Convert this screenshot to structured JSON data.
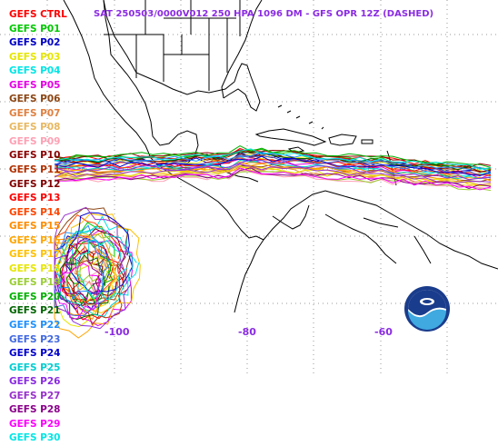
{
  "title": "SAT 250503/0000V012  250 HPA 1096 DM - GFS OPR 12Z (DASHED)",
  "legend": [
    {
      "label": "GEFS CTRL",
      "color": "#ff0000"
    },
    {
      "label": "GEFS P01",
      "color": "#00c800"
    },
    {
      "label": "GEFS P02",
      "color": "#0000c8"
    },
    {
      "label": "GEFS P03",
      "color": "#e6e600"
    },
    {
      "label": "GEFS P04",
      "color": "#00e6e6"
    },
    {
      "label": "GEFS P05",
      "color": "#e600e6"
    },
    {
      "label": "GEFS P06",
      "color": "#8b4513"
    },
    {
      "label": "GEFS P07",
      "color": "#e08040"
    },
    {
      "label": "GEFS P08",
      "color": "#e8b860"
    },
    {
      "label": "GEFS P09",
      "color": "#ffa0b4"
    },
    {
      "label": "GEFS P10",
      "color": "#8b0000"
    },
    {
      "label": "GEFS P11",
      "color": "#b03000"
    },
    {
      "label": "GEFS P12",
      "color": "#800000"
    },
    {
      "label": "GEFS P13",
      "color": "#ff0000"
    },
    {
      "label": "GEFS P14",
      "color": "#ff4500"
    },
    {
      "label": "GEFS P15",
      "color": "#ff8c00"
    },
    {
      "label": "GEFS P16",
      "color": "#ffa500"
    },
    {
      "label": "GEFS P17",
      "color": "#ffc000"
    },
    {
      "label": "GEFS P18",
      "color": "#e6e600"
    },
    {
      "label": "GEFS P19",
      "color": "#9acd32"
    },
    {
      "label": "GEFS P20",
      "color": "#00b000"
    },
    {
      "label": "GEFS P21",
      "color": "#006400"
    },
    {
      "label": "GEFS P22",
      "color": "#1e90ff"
    },
    {
      "label": "GEFS P23",
      "color": "#4169e1"
    },
    {
      "label": "GEFS P24",
      "color": "#0000cd"
    },
    {
      "label": "GEFS P25",
      "color": "#00ced1"
    },
    {
      "label": "GEFS P26",
      "color": "#8a2be2"
    },
    {
      "label": "GEFS P27",
      "color": "#9932cc"
    },
    {
      "label": "GEFS P28",
      "color": "#8b008b"
    },
    {
      "label": "GEFS P29",
      "color": "#ff00ff"
    },
    {
      "label": "GEFS P30",
      "color": "#00e6e6"
    }
  ],
  "longitude_labels": [
    "-100",
    "-80",
    "-60"
  ],
  "title_color": "#8a2be2"
}
